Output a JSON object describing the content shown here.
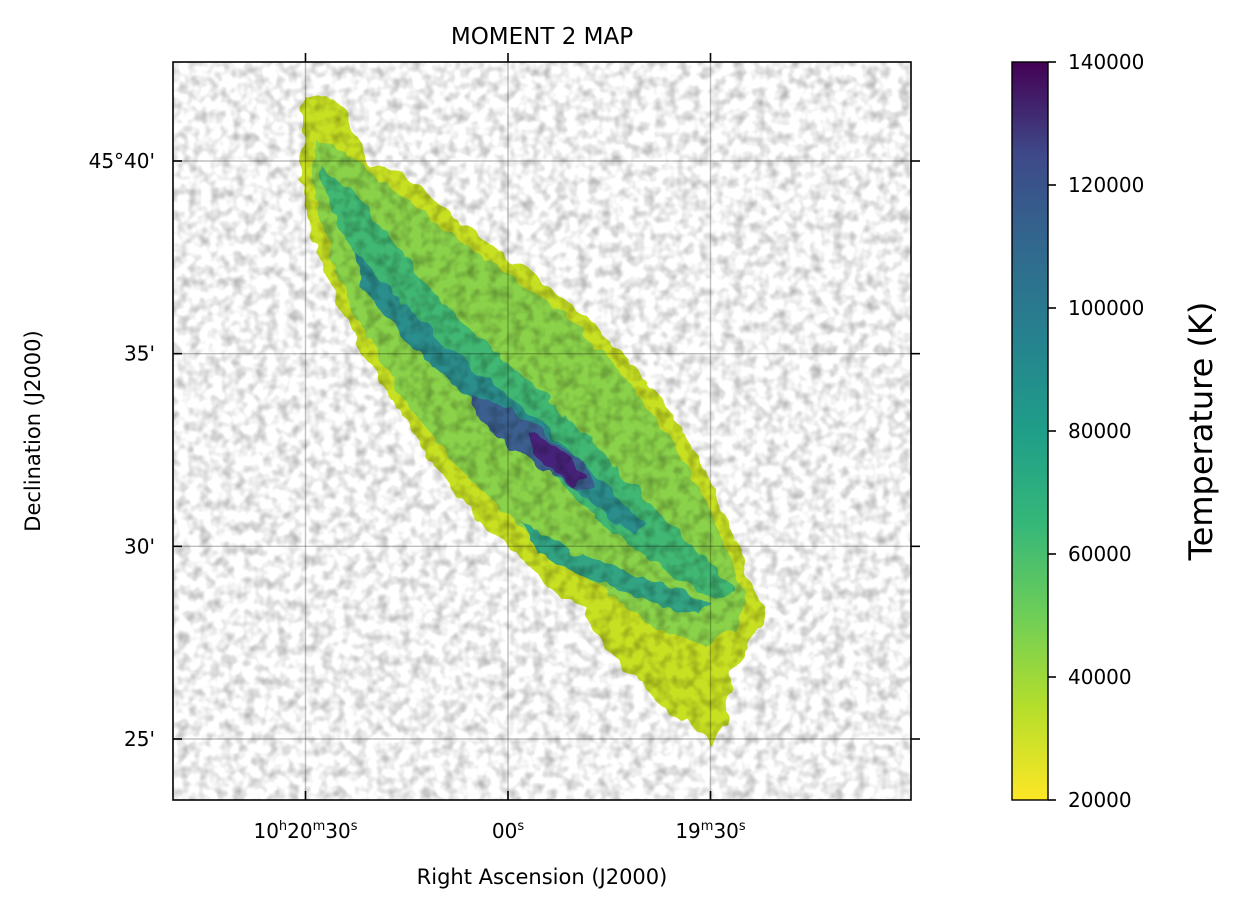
{
  "chart_data": {
    "type": "heatmap",
    "title": "MOMENT 2 MAP",
    "xlabel": "Right Ascension (J2000)",
    "ylabel": "Declination (J2000)",
    "grid": true,
    "x_ticks": [
      {
        "ra_seconds": 30,
        "main": "10",
        "h": "h",
        "mid": "20",
        "m": "m",
        "sec": "30",
        "s": "s"
      },
      {
        "ra_seconds": 0,
        "main": "",
        "h": "",
        "mid": "",
        "m": "",
        "sec": "00",
        "s": "s"
      },
      {
        "ra_seconds": -30,
        "main": "",
        "h": "",
        "mid": "19",
        "m": "m",
        "sec": "30",
        "s": "s"
      }
    ],
    "y_ticks": [
      {
        "dec_arcmin": 40,
        "label": "45°40'"
      },
      {
        "dec_arcmin": 35,
        "label": "35'"
      },
      {
        "dec_arcmin": 30,
        "label": "30'"
      },
      {
        "dec_arcmin": 25,
        "label": "25'"
      }
    ],
    "colorbar": {
      "label": "Temperature (K)",
      "colormap": "viridis_r",
      "range": [
        20000,
        140000
      ],
      "ticks": [
        "20000",
        "40000",
        "60000",
        "80000",
        "100000",
        "120000",
        "140000"
      ],
      "tick_values": [
        20000,
        40000,
        60000,
        80000,
        100000,
        120000,
        140000
      ]
    },
    "colors": {
      "low": "#fde725",
      "mid_low": "#7ad151",
      "mid": "#22a884",
      "mid_high": "#2a788e",
      "high": "#414487",
      "max": "#440154"
    }
  }
}
